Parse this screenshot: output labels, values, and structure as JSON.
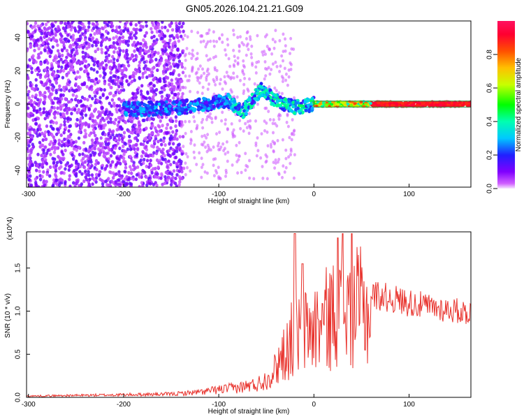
{
  "title": "GN05.2026.104.21.21.G09",
  "colors": {
    "snr_line": "#e8302a",
    "spectrogram_low": "#7a10f0",
    "spectrogram_high": "#f0103a"
  },
  "chart_data": [
    {
      "type": "heatmap",
      "xlabel": "Height of straight line (km)",
      "ylabel": "Frequency (Hz)",
      "xlim": [
        -302,
        165
      ],
      "ylim": [
        -50,
        50
      ],
      "x_ticks": [
        -300,
        -200,
        -100,
        0,
        100
      ],
      "y_ticks": [
        -40,
        -20,
        0,
        20,
        40
      ],
      "grid": false,
      "colorbar": {
        "label": "Normalized spectral amplitude",
        "range": [
          0,
          1
        ],
        "ticks": [
          "0.0",
          "0.2",
          "0.4",
          "0.6",
          "0.8"
        ],
        "tick_values": [
          0,
          0.2,
          0.4,
          0.6,
          0.8
        ],
        "colormap": "rainbow"
      },
      "features": [
        {
          "name": "noise",
          "x_range": [
            -302,
            -140
          ],
          "freq_range": [
            -50,
            50
          ],
          "amplitude": 0.15
        },
        {
          "name": "main_track",
          "x": [
            -180,
            -140,
            -110,
            -90,
            -75,
            -60,
            -55,
            -45,
            -35,
            -20,
            0,
            50,
            165
          ],
          "freq": [
            -3,
            -2,
            0,
            2,
            -5,
            6,
            9,
            4,
            1,
            -2,
            0,
            0,
            0
          ]
        },
        {
          "name": "strong_band",
          "x_range": [
            0,
            165
          ],
          "freq": 0.5,
          "amplitude": 0.95
        }
      ]
    },
    {
      "type": "line",
      "xlabel": "Height of straight line (km)",
      "ylabel": "SNR (10 * v/v)",
      "y_multiplier": "(x10^4)",
      "xlim": [
        -302,
        165
      ],
      "ylim": [
        0,
        1.92
      ],
      "x_ticks": [
        -300,
        -200,
        -100,
        0,
        100
      ],
      "y_ticks": [
        "0.0",
        "0.5",
        "1.0",
        "1.5"
      ],
      "y_tick_values": [
        0,
        0.5,
        1.0,
        1.5
      ],
      "grid": false,
      "series": [
        {
          "envelope_x": [
            -302,
            -250,
            -200,
            -150,
            -120,
            -100,
            -80,
            -60,
            -50,
            -40,
            -30,
            -20,
            -10,
            0,
            10,
            20,
            30,
            40,
            50,
            60,
            80,
            100,
            120,
            140,
            165
          ],
          "envelope_y": [
            0.02,
            0.03,
            0.04,
            0.05,
            0.08,
            0.12,
            0.15,
            0.2,
            0.28,
            0.45,
            0.7,
            0.9,
            0.95,
            1.0,
            1.1,
            1.2,
            1.25,
            1.3,
            1.3,
            1.2,
            1.15,
            1.1,
            1.05,
            1.02,
            0.98
          ],
          "spikes": [
            {
              "x": -20,
              "y": 1.9
            },
            {
              "x": -12,
              "y": 1.55
            },
            {
              "x": 25,
              "y": 1.85
            },
            {
              "x": 30,
              "y": 1.9
            },
            {
              "x": 40,
              "y": 1.9
            }
          ]
        }
      ]
    }
  ]
}
